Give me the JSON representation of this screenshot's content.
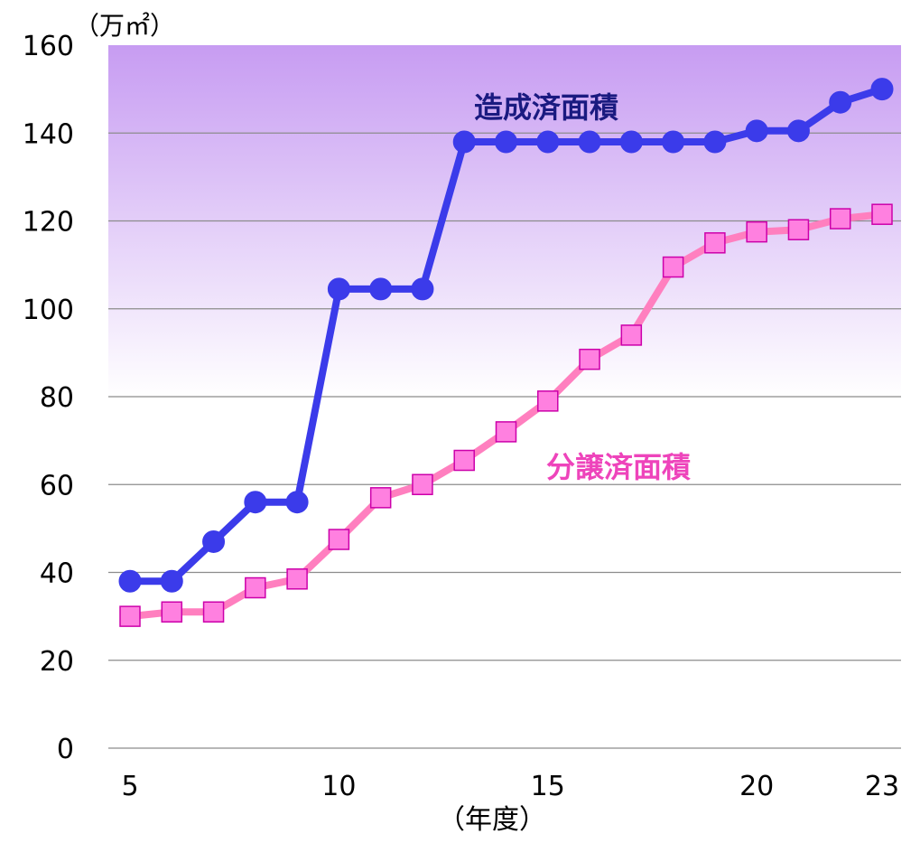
{
  "chart_data": {
    "type": "line",
    "unit_label": "（万㎡）",
    "xlabel": "（年度）",
    "ylim": [
      0,
      160
    ],
    "yticks": [
      0,
      20,
      40,
      60,
      80,
      100,
      120,
      140,
      160
    ],
    "xlim": [
      5,
      23
    ],
    "xticks": [
      5,
      10,
      15,
      20,
      23
    ],
    "x": [
      5,
      6,
      7,
      8,
      9,
      10,
      11,
      12,
      13,
      14,
      15,
      16,
      17,
      18,
      19,
      20,
      21,
      22,
      23
    ],
    "grid": true,
    "background_gradient": [
      "#c79cf2",
      "#ffffff"
    ],
    "series": [
      {
        "name": "造成済面積",
        "color": "#3b3bea",
        "label_color": "#1a1a80",
        "marker": "circle",
        "values": [
          38,
          38,
          47,
          56,
          56,
          104.5,
          104.5,
          104.5,
          138,
          138,
          138,
          138,
          138,
          138,
          138,
          140.5,
          140.5,
          147,
          150
        ]
      },
      {
        "name": "分譲済面積",
        "color": "#ff7fbf",
        "label_color": "#ee44bb",
        "marker": "square",
        "values": [
          30,
          31,
          31,
          36.5,
          38.5,
          47.5,
          57,
          60,
          65.5,
          72,
          79,
          88.5,
          94,
          109.5,
          115,
          117.5,
          118,
          120.5,
          121.5
        ]
      }
    ]
  }
}
